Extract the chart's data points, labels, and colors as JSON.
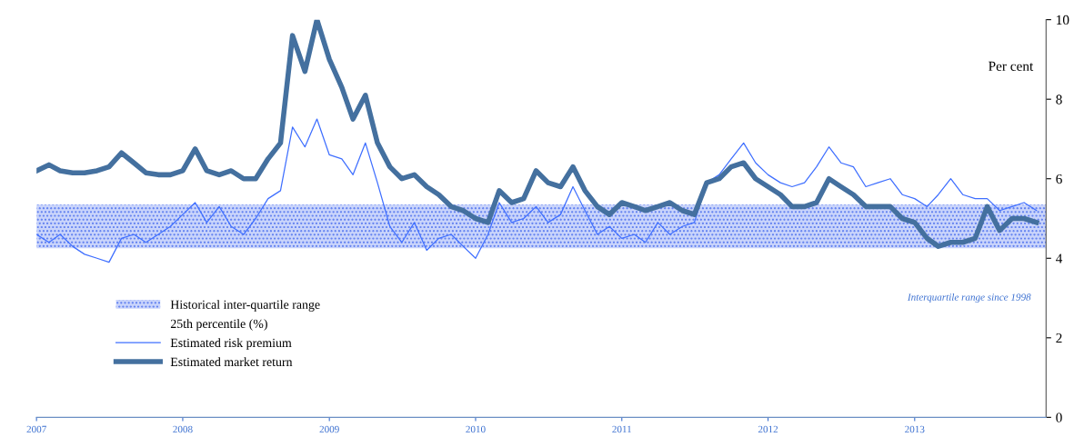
{
  "chart_data": {
    "type": "line",
    "ylabel": "Per cent",
    "x": [
      "2007-01",
      "2007-02",
      "2007-03",
      "2007-04",
      "2007-05",
      "2007-06",
      "2007-07",
      "2007-08",
      "2007-09",
      "2007-10",
      "2007-11",
      "2007-12",
      "2008-01",
      "2008-02",
      "2008-03",
      "2008-04",
      "2008-05",
      "2008-06",
      "2008-07",
      "2008-08",
      "2008-09",
      "2008-10",
      "2008-11",
      "2008-12",
      "2009-01",
      "2009-02",
      "2009-03",
      "2009-04",
      "2009-05",
      "2009-06",
      "2009-07",
      "2009-08",
      "2009-09",
      "2009-10",
      "2009-11",
      "2009-12",
      "2010-01",
      "2010-02",
      "2010-03",
      "2010-04",
      "2010-05",
      "2010-06",
      "2010-07",
      "2010-08",
      "2010-09",
      "2010-10",
      "2010-11",
      "2010-12",
      "2011-01",
      "2011-02",
      "2011-03",
      "2011-04",
      "2011-05",
      "2011-06",
      "2011-07",
      "2011-08",
      "2011-09",
      "2011-10",
      "2011-11",
      "2011-12",
      "2012-01",
      "2012-02",
      "2012-03",
      "2012-04",
      "2012-05",
      "2012-06",
      "2012-07",
      "2012-08",
      "2012-09",
      "2012-10",
      "2012-11",
      "2012-12",
      "2013-01",
      "2013-02",
      "2013-03",
      "2013-04",
      "2013-05",
      "2013-06",
      "2013-07",
      "2013-08",
      "2013-09",
      "2013-10",
      "2013-11"
    ],
    "series": [
      {
        "name": "Estimated risk premium",
        "color": "#3f6fff",
        "values": [
          4.6,
          4.4,
          4.6,
          4.3,
          4.1,
          4.0,
          3.9,
          4.5,
          4.6,
          4.4,
          4.6,
          4.8,
          5.1,
          5.4,
          4.9,
          5.3,
          4.8,
          4.6,
          5.0,
          5.5,
          5.7,
          7.3,
          6.8,
          7.5,
          6.6,
          6.5,
          6.1,
          6.9,
          5.9,
          4.8,
          4.4,
          4.9,
          4.2,
          4.5,
          4.6,
          4.3,
          4.0,
          4.6,
          5.4,
          4.9,
          5.0,
          5.3,
          4.9,
          5.1,
          5.8,
          5.2,
          4.6,
          4.8,
          4.5,
          4.6,
          4.4,
          4.9,
          4.6,
          4.8,
          4.9,
          5.9,
          6.1,
          6.5,
          6.9,
          6.4,
          6.1,
          5.9,
          5.8,
          5.9,
          6.3,
          6.8,
          6.4,
          6.3,
          5.8,
          5.9,
          6.0,
          5.6,
          5.5,
          5.3,
          5.6,
          6.0,
          5.6,
          5.5,
          5.5,
          5.2,
          5.3,
          5.4,
          5.2
        ]
      },
      {
        "name": "Estimated market return",
        "color": "#44709f",
        "values": [
          6.2,
          6.35,
          6.2,
          6.15,
          6.15,
          6.2,
          6.3,
          6.65,
          6.4,
          6.15,
          6.1,
          6.1,
          6.2,
          6.75,
          6.2,
          6.1,
          6.2,
          6.0,
          6.0,
          6.5,
          6.9,
          9.6,
          8.7,
          10.0,
          9.0,
          8.3,
          7.5,
          8.1,
          6.9,
          6.3,
          6.0,
          6.1,
          5.8,
          5.6,
          5.3,
          5.2,
          5.0,
          4.9,
          5.7,
          5.4,
          5.5,
          6.2,
          5.9,
          5.8,
          6.3,
          5.7,
          5.3,
          5.1,
          5.4,
          5.3,
          5.2,
          5.3,
          5.4,
          5.2,
          5.1,
          5.9,
          6.0,
          6.3,
          6.4,
          6.0,
          5.8,
          5.6,
          5.3,
          5.3,
          5.4,
          6.0,
          5.8,
          5.6,
          5.3,
          5.3,
          5.3,
          5.0,
          4.9,
          4.5,
          4.3,
          4.4,
          4.4,
          4.5,
          5.3,
          4.7,
          5.0,
          5.0,
          4.9
        ]
      }
    ],
    "bands": [
      {
        "axis": "y",
        "from": 4.25,
        "to": 5.35,
        "label": "Historical inter-quartile range",
        "color": "#5b7cf0"
      }
    ],
    "annotations": [
      "25th percentile (%)",
      "Interquartile range since 1998"
    ],
    "xlim": [
      "2007-01-01",
      "2013-11-25"
    ],
    "xticks": [
      "2007",
      "2008",
      "2009",
      "2010",
      "2011",
      "2012",
      "2013"
    ],
    "ylim": [
      0,
      10
    ],
    "yticks": [
      0,
      2,
      4,
      6,
      8,
      10
    ],
    "grid": false,
    "legend": "bottom left"
  }
}
